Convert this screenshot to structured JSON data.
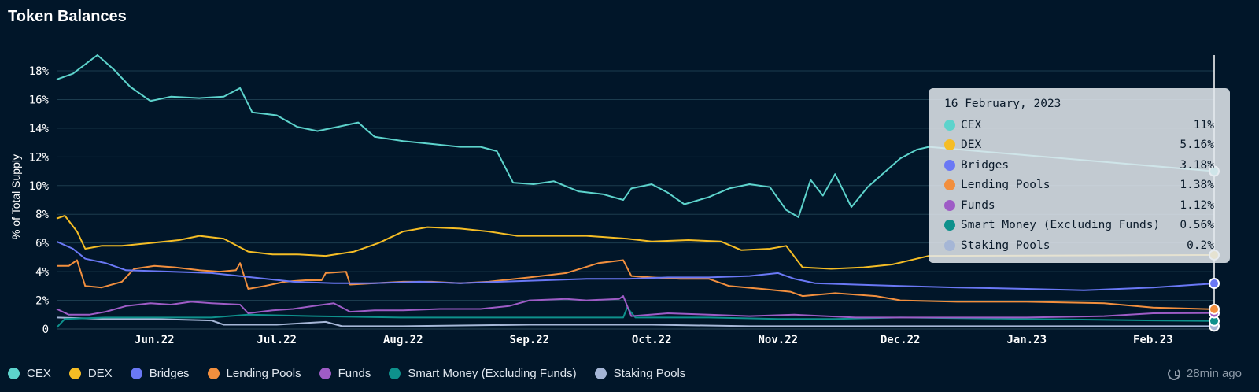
{
  "header": {
    "title": "Token Balances"
  },
  "tooltip": {
    "date": "16 February, 2023",
    "rows": [
      {
        "name": "CEX",
        "value": "11%",
        "color": "#5dd3cc"
      },
      {
        "name": "DEX",
        "value": "5.16%",
        "color": "#f5bd25"
      },
      {
        "name": "Bridges",
        "value": "3.18%",
        "color": "#6a78f5"
      },
      {
        "name": "Lending Pools",
        "value": "1.38%",
        "color": "#f28f3e"
      },
      {
        "name": "Funds",
        "value": "1.12%",
        "color": "#9e5cc6"
      },
      {
        "name": "Smart Money (Excluding Funds)",
        "value": "0.56%",
        "color": "#0e918c"
      },
      {
        "name": "Staking Pools",
        "value": "0.2%",
        "color": "#a5b6d6"
      }
    ]
  },
  "legend": [
    {
      "name": "CEX",
      "color": "#5dd3cc"
    },
    {
      "name": "DEX",
      "color": "#f5bd25"
    },
    {
      "name": "Bridges",
      "color": "#6a78f5"
    },
    {
      "name": "Lending Pools",
      "color": "#f28f3e"
    },
    {
      "name": "Funds",
      "color": "#9e5cc6"
    },
    {
      "name": "Smart Money (Excluding Funds)",
      "color": "#0e918c"
    },
    {
      "name": "Staking Pools",
      "color": "#a5b6d6"
    }
  ],
  "status": {
    "updated": "28min ago",
    "icon": "refresh-icon"
  },
  "chart_data": {
    "type": "line",
    "title": "Token Balances",
    "ylabel": "% of Total Supply",
    "xlabel": "",
    "ylim": [
      0,
      18
    ],
    "yticks": [
      0,
      2,
      4,
      6,
      8,
      10,
      12,
      14,
      16,
      18
    ],
    "ytick_labels": [
      "0",
      "2%",
      "4%",
      "6%",
      "8%",
      "10%",
      "12%",
      "14%",
      "16%",
      "18%"
    ],
    "xlim": [
      "2022-05-08",
      "2023-02-16"
    ],
    "xticks": [
      {
        "date": "2022-06-01",
        "label": "Jun.22"
      },
      {
        "date": "2022-07-01",
        "label": "Jul.22"
      },
      {
        "date": "2022-08-01",
        "label": "Aug.22"
      },
      {
        "date": "2022-09-01",
        "label": "Sep.22"
      },
      {
        "date": "2022-10-01",
        "label": "Oct.22"
      },
      {
        "date": "2022-11-01",
        "label": "Nov.22"
      },
      {
        "date": "2022-12-01",
        "label": "Dec.22"
      },
      {
        "date": "2023-01-01",
        "label": "Jan.23"
      },
      {
        "date": "2023-02-01",
        "label": "Feb.23"
      }
    ],
    "grid": true,
    "legend_position": "bottom-left",
    "series": [
      {
        "name": "CEX",
        "color": "#5dd3cc",
        "points": [
          [
            "2022-05-08",
            17.4
          ],
          [
            "2022-05-12",
            17.8
          ],
          [
            "2022-05-18",
            19.1
          ],
          [
            "2022-05-22",
            18.1
          ],
          [
            "2022-05-26",
            16.9
          ],
          [
            "2022-05-31",
            15.9
          ],
          [
            "2022-06-05",
            16.2
          ],
          [
            "2022-06-12",
            16.1
          ],
          [
            "2022-06-18",
            16.2
          ],
          [
            "2022-06-22",
            16.8
          ],
          [
            "2022-06-25",
            15.1
          ],
          [
            "2022-07-01",
            14.9
          ],
          [
            "2022-07-06",
            14.1
          ],
          [
            "2022-07-11",
            13.8
          ],
          [
            "2022-07-16",
            14.1
          ],
          [
            "2022-07-21",
            14.4
          ],
          [
            "2022-07-25",
            13.4
          ],
          [
            "2022-08-01",
            13.1
          ],
          [
            "2022-08-08",
            12.9
          ],
          [
            "2022-08-15",
            12.7
          ],
          [
            "2022-08-20",
            12.7
          ],
          [
            "2022-08-24",
            12.4
          ],
          [
            "2022-08-28",
            10.2
          ],
          [
            "2022-09-02",
            10.1
          ],
          [
            "2022-09-07",
            10.3
          ],
          [
            "2022-09-13",
            9.6
          ],
          [
            "2022-09-19",
            9.4
          ],
          [
            "2022-09-24",
            9.0
          ],
          [
            "2022-09-26",
            9.8
          ],
          [
            "2022-10-01",
            10.1
          ],
          [
            "2022-10-05",
            9.5
          ],
          [
            "2022-10-09",
            8.7
          ],
          [
            "2022-10-15",
            9.2
          ],
          [
            "2022-10-20",
            9.8
          ],
          [
            "2022-10-25",
            10.1
          ],
          [
            "2022-10-30",
            9.9
          ],
          [
            "2022-11-03",
            8.3
          ],
          [
            "2022-11-06",
            7.8
          ],
          [
            "2022-11-09",
            10.4
          ],
          [
            "2022-11-12",
            9.3
          ],
          [
            "2022-11-15",
            10.8
          ],
          [
            "2022-11-19",
            8.5
          ],
          [
            "2022-11-23",
            9.9
          ],
          [
            "2022-11-27",
            10.9
          ],
          [
            "2022-12-01",
            11.9
          ],
          [
            "2022-12-05",
            12.5
          ],
          [
            "2022-12-08",
            12.7
          ],
          [
            "2023-02-16",
            11.0
          ]
        ]
      },
      {
        "name": "DEX",
        "color": "#f5bd25",
        "points": [
          [
            "2022-05-08",
            7.7
          ],
          [
            "2022-05-10",
            7.9
          ],
          [
            "2022-05-13",
            6.8
          ],
          [
            "2022-05-15",
            5.6
          ],
          [
            "2022-05-19",
            5.8
          ],
          [
            "2022-05-24",
            5.8
          ],
          [
            "2022-05-31",
            6.0
          ],
          [
            "2022-06-07",
            6.2
          ],
          [
            "2022-06-12",
            6.5
          ],
          [
            "2022-06-18",
            6.3
          ],
          [
            "2022-06-24",
            5.4
          ],
          [
            "2022-06-30",
            5.2
          ],
          [
            "2022-07-06",
            5.2
          ],
          [
            "2022-07-13",
            5.1
          ],
          [
            "2022-07-20",
            5.4
          ],
          [
            "2022-07-26",
            6.0
          ],
          [
            "2022-08-01",
            6.8
          ],
          [
            "2022-08-07",
            7.1
          ],
          [
            "2022-08-15",
            7.0
          ],
          [
            "2022-08-22",
            6.8
          ],
          [
            "2022-08-29",
            6.5
          ],
          [
            "2022-09-05",
            6.5
          ],
          [
            "2022-09-15",
            6.5
          ],
          [
            "2022-09-25",
            6.3
          ],
          [
            "2022-10-01",
            6.1
          ],
          [
            "2022-10-10",
            6.2
          ],
          [
            "2022-10-18",
            6.1
          ],
          [
            "2022-10-23",
            5.5
          ],
          [
            "2022-10-30",
            5.6
          ],
          [
            "2022-11-03",
            5.8
          ],
          [
            "2022-11-07",
            4.3
          ],
          [
            "2022-11-14",
            4.2
          ],
          [
            "2022-11-22",
            4.3
          ],
          [
            "2022-11-29",
            4.5
          ],
          [
            "2022-12-05",
            4.9
          ],
          [
            "2022-12-08",
            5.1
          ],
          [
            "2023-02-16",
            5.16
          ]
        ]
      },
      {
        "name": "Bridges",
        "color": "#6a78f5",
        "points": [
          [
            "2022-05-08",
            6.1
          ],
          [
            "2022-05-12",
            5.6
          ],
          [
            "2022-05-15",
            4.9
          ],
          [
            "2022-05-20",
            4.6
          ],
          [
            "2022-05-25",
            4.1
          ],
          [
            "2022-06-05",
            4.0
          ],
          [
            "2022-06-15",
            3.9
          ],
          [
            "2022-06-25",
            3.6
          ],
          [
            "2022-07-05",
            3.3
          ],
          [
            "2022-07-15",
            3.2
          ],
          [
            "2022-07-25",
            3.2
          ],
          [
            "2022-08-05",
            3.3
          ],
          [
            "2022-08-15",
            3.2
          ],
          [
            "2022-08-25",
            3.3
          ],
          [
            "2022-09-05",
            3.4
          ],
          [
            "2022-09-15",
            3.5
          ],
          [
            "2022-09-25",
            3.5
          ],
          [
            "2022-10-05",
            3.6
          ],
          [
            "2022-10-15",
            3.6
          ],
          [
            "2022-10-25",
            3.7
          ],
          [
            "2022-11-01",
            3.9
          ],
          [
            "2022-11-05",
            3.5
          ],
          [
            "2022-11-10",
            3.2
          ],
          [
            "2022-11-20",
            3.1
          ],
          [
            "2022-12-01",
            3.0
          ],
          [
            "2022-12-15",
            2.9
          ],
          [
            "2023-01-01",
            2.8
          ],
          [
            "2023-01-15",
            2.7
          ],
          [
            "2023-02-01",
            2.9
          ],
          [
            "2023-02-16",
            3.18
          ]
        ]
      },
      {
        "name": "Lending Pools",
        "color": "#f28f3e",
        "points": [
          [
            "2022-05-08",
            4.4
          ],
          [
            "2022-05-11",
            4.4
          ],
          [
            "2022-05-13",
            4.8
          ],
          [
            "2022-05-15",
            3.0
          ],
          [
            "2022-05-19",
            2.9
          ],
          [
            "2022-05-24",
            3.3
          ],
          [
            "2022-05-27",
            4.2
          ],
          [
            "2022-06-01",
            4.4
          ],
          [
            "2022-06-06",
            4.3
          ],
          [
            "2022-06-12",
            4.1
          ],
          [
            "2022-06-17",
            4.0
          ],
          [
            "2022-06-21",
            4.1
          ],
          [
            "2022-06-22",
            4.6
          ],
          [
            "2022-06-24",
            2.8
          ],
          [
            "2022-06-28",
            3.0
          ],
          [
            "2022-07-03",
            3.3
          ],
          [
            "2022-07-08",
            3.4
          ],
          [
            "2022-07-12",
            3.4
          ],
          [
            "2022-07-13",
            3.9
          ],
          [
            "2022-07-18",
            4.0
          ],
          [
            "2022-07-19",
            3.1
          ],
          [
            "2022-07-25",
            3.2
          ],
          [
            "2022-08-01",
            3.3
          ],
          [
            "2022-08-08",
            3.3
          ],
          [
            "2022-08-15",
            3.2
          ],
          [
            "2022-08-22",
            3.3
          ],
          [
            "2022-09-01",
            3.6
          ],
          [
            "2022-09-10",
            3.9
          ],
          [
            "2022-09-18",
            4.6
          ],
          [
            "2022-09-24",
            4.8
          ],
          [
            "2022-09-26",
            3.7
          ],
          [
            "2022-10-01",
            3.6
          ],
          [
            "2022-10-08",
            3.5
          ],
          [
            "2022-10-15",
            3.5
          ],
          [
            "2022-10-20",
            3.0
          ],
          [
            "2022-10-28",
            2.8
          ],
          [
            "2022-11-04",
            2.6
          ],
          [
            "2022-11-07",
            2.3
          ],
          [
            "2022-11-15",
            2.5
          ],
          [
            "2022-11-25",
            2.3
          ],
          [
            "2022-12-01",
            2.0
          ],
          [
            "2022-12-15",
            1.9
          ],
          [
            "2023-01-01",
            1.9
          ],
          [
            "2023-01-20",
            1.8
          ],
          [
            "2023-02-01",
            1.5
          ],
          [
            "2023-02-16",
            1.38
          ]
        ]
      },
      {
        "name": "Funds",
        "color": "#9e5cc6",
        "points": [
          [
            "2022-05-08",
            1.4
          ],
          [
            "2022-05-11",
            1.0
          ],
          [
            "2022-05-16",
            1.0
          ],
          [
            "2022-05-20",
            1.2
          ],
          [
            "2022-05-25",
            1.6
          ],
          [
            "2022-05-31",
            1.8
          ],
          [
            "2022-06-05",
            1.7
          ],
          [
            "2022-06-10",
            1.9
          ],
          [
            "2022-06-15",
            1.8
          ],
          [
            "2022-06-22",
            1.7
          ],
          [
            "2022-06-24",
            1.1
          ],
          [
            "2022-06-30",
            1.3
          ],
          [
            "2022-07-05",
            1.4
          ],
          [
            "2022-07-10",
            1.6
          ],
          [
            "2022-07-15",
            1.8
          ],
          [
            "2022-07-19",
            1.2
          ],
          [
            "2022-07-25",
            1.3
          ],
          [
            "2022-08-01",
            1.3
          ],
          [
            "2022-08-10",
            1.4
          ],
          [
            "2022-08-20",
            1.4
          ],
          [
            "2022-08-27",
            1.6
          ],
          [
            "2022-09-01",
            2.0
          ],
          [
            "2022-09-10",
            2.1
          ],
          [
            "2022-09-15",
            2.0
          ],
          [
            "2022-09-23",
            2.1
          ],
          [
            "2022-09-24",
            2.3
          ],
          [
            "2022-09-26",
            0.9
          ],
          [
            "2022-10-05",
            1.1
          ],
          [
            "2022-10-15",
            1.0
          ],
          [
            "2022-10-25",
            0.9
          ],
          [
            "2022-11-05",
            1.0
          ],
          [
            "2022-11-20",
            0.8
          ],
          [
            "2022-12-01",
            0.8
          ],
          [
            "2023-01-01",
            0.8
          ],
          [
            "2023-01-20",
            0.9
          ],
          [
            "2023-02-01",
            1.1
          ],
          [
            "2023-02-16",
            1.12
          ]
        ]
      },
      {
        "name": "Smart Money (Excluding Funds)",
        "color": "#0e918c",
        "points": [
          [
            "2022-05-08",
            0.1
          ],
          [
            "2022-05-10",
            0.7
          ],
          [
            "2022-05-20",
            0.8
          ],
          [
            "2022-06-01",
            0.8
          ],
          [
            "2022-06-15",
            0.8
          ],
          [
            "2022-06-24",
            1.0
          ],
          [
            "2022-07-10",
            0.9
          ],
          [
            "2022-08-01",
            0.8
          ],
          [
            "2022-09-01",
            0.8
          ],
          [
            "2022-09-24",
            0.8
          ],
          [
            "2022-09-25",
            1.5
          ],
          [
            "2022-09-27",
            0.8
          ],
          [
            "2022-10-15",
            0.8
          ],
          [
            "2022-11-01",
            0.7
          ],
          [
            "2022-11-15",
            0.7
          ],
          [
            "2022-12-01",
            0.8
          ],
          [
            "2023-01-01",
            0.7
          ],
          [
            "2023-02-01",
            0.6
          ],
          [
            "2023-02-16",
            0.56
          ]
        ]
      },
      {
        "name": "Staking Pools",
        "color": "#a5b6d6",
        "points": [
          [
            "2022-05-08",
            0.8
          ],
          [
            "2022-05-20",
            0.7
          ],
          [
            "2022-06-01",
            0.7
          ],
          [
            "2022-06-15",
            0.6
          ],
          [
            "2022-06-18",
            0.3
          ],
          [
            "2022-07-01",
            0.3
          ],
          [
            "2022-07-13",
            0.5
          ],
          [
            "2022-07-17",
            0.2
          ],
          [
            "2022-08-01",
            0.2
          ],
          [
            "2022-09-01",
            0.3
          ],
          [
            "2022-10-01",
            0.3
          ],
          [
            "2022-10-25",
            0.2
          ],
          [
            "2022-11-05",
            0.2
          ],
          [
            "2022-12-01",
            0.2
          ],
          [
            "2023-01-01",
            0.2
          ],
          [
            "2023-02-16",
            0.2
          ]
        ]
      }
    ]
  }
}
